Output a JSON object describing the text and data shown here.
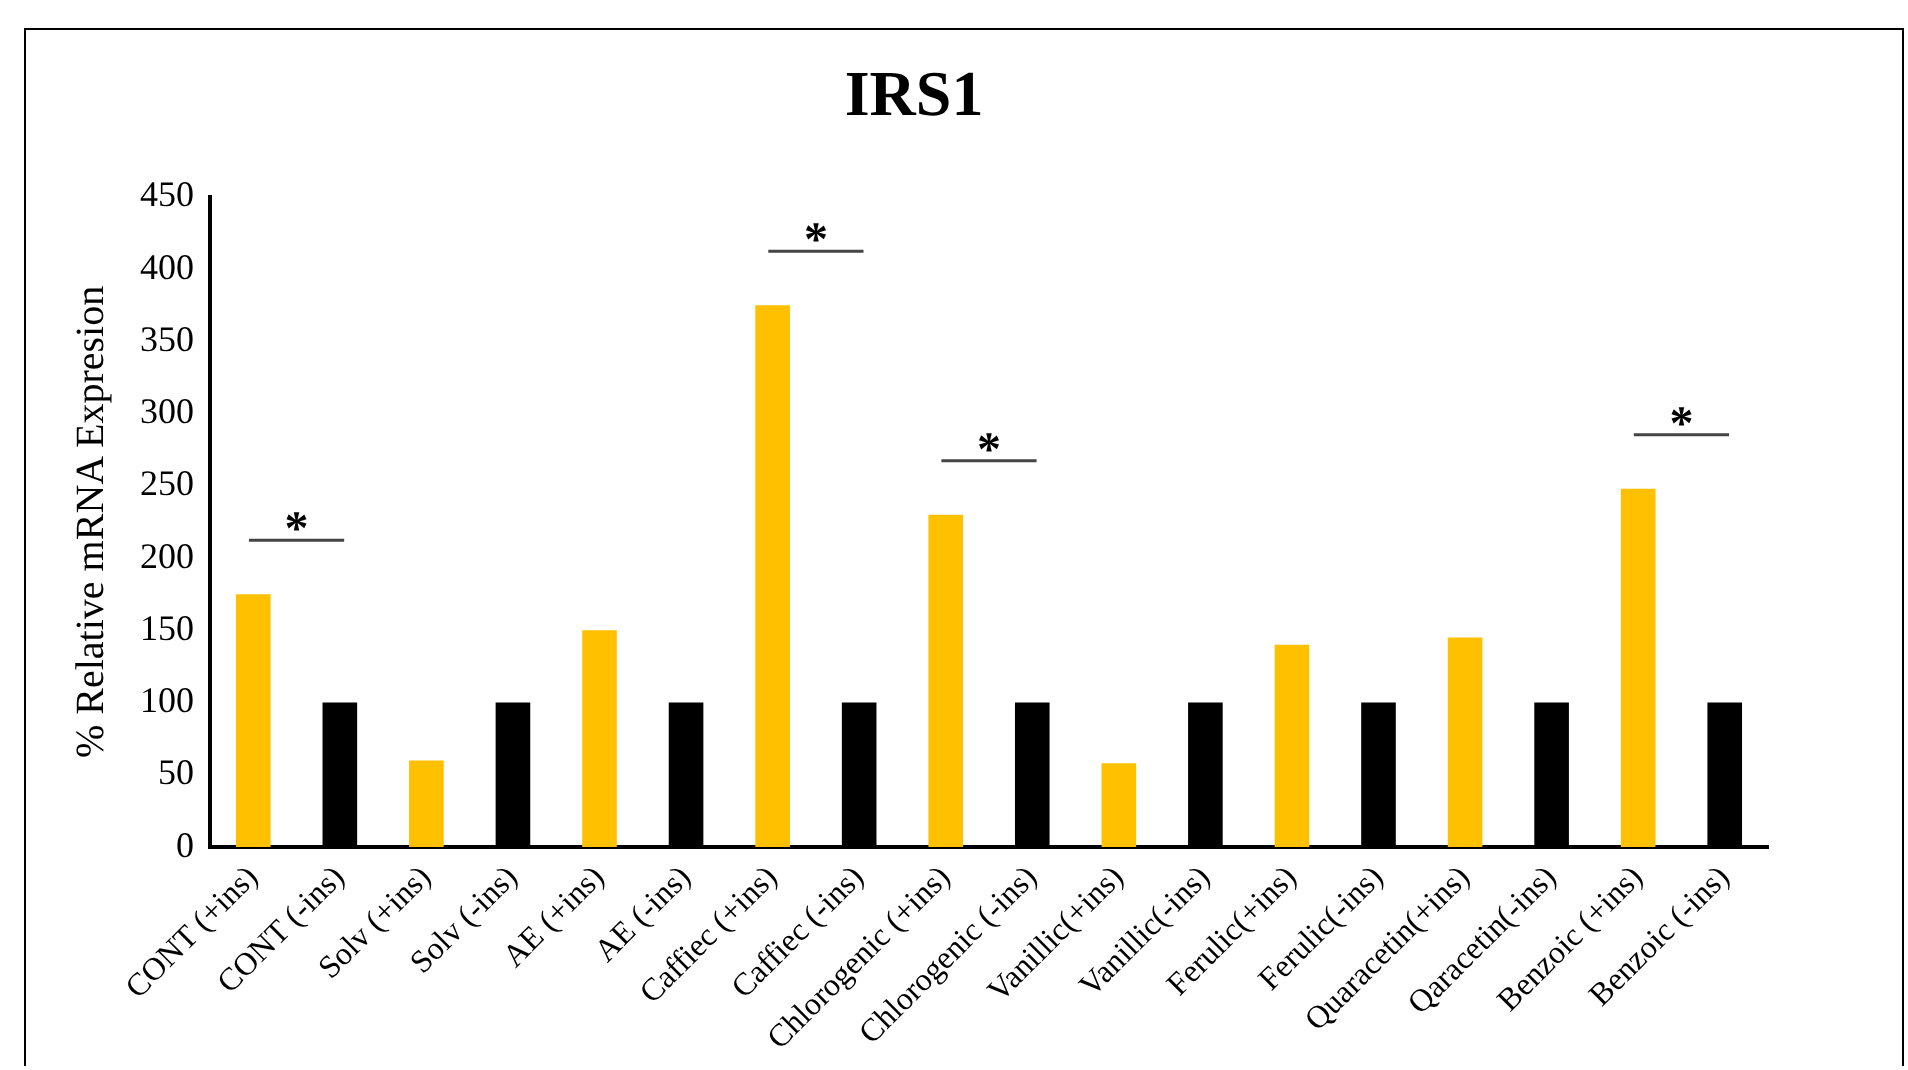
{
  "chart_data": {
    "type": "bar",
    "title": "IRS1",
    "ylabel": "% Relative mRNA Expresion",
    "categories": [
      "CONT (+ins)",
      "CONT (-ins)",
      "Solv (+ins)",
      "Solv (-ins)",
      "AE (+ins)",
      "AE (-ins)",
      "Caffiec (+ins)",
      "Caffiec (-ins)",
      "Chlorogenic (+ins)",
      "Chlorogenic (-ins)",
      "Vanillic(+ins)",
      "Vanillic(-ins)",
      "Ferulic(+ins)",
      "Ferulic(-ins)",
      "Quaracetin(+ins)",
      "Qaracetin(-ins)",
      "Benzoic (+ins)",
      "Benzoic (-ins)"
    ],
    "values": [
      175,
      100,
      60,
      100,
      150,
      100,
      375,
      100,
      230,
      100,
      58,
      100,
      140,
      100,
      145,
      100,
      248,
      100
    ],
    "colors": [
      "#ffc000",
      "#000000",
      "#ffc000",
      "#000000",
      "#ffc000",
      "#000000",
      "#ffc000",
      "#000000",
      "#ffc000",
      "#000000",
      "#ffc000",
      "#000000",
      "#ffc000",
      "#000000",
      "#ffc000",
      "#000000",
      "#ffc000",
      "#000000"
    ],
    "ylim": [
      0,
      450
    ],
    "yticks": [
      0,
      50,
      100,
      150,
      200,
      250,
      300,
      350,
      400,
      450
    ],
    "grid": false,
    "legend": false,
    "annotations": [
      "*",
      "*",
      "*",
      "*"
    ]
  }
}
